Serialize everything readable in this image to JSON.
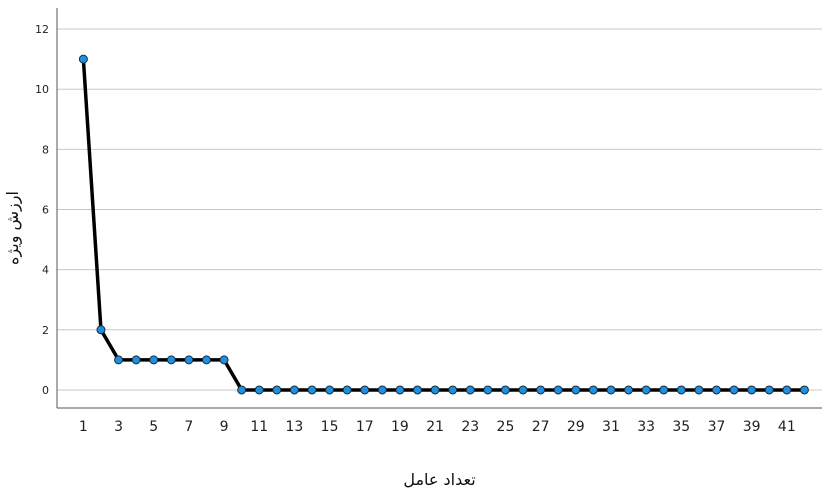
{
  "chart_data": {
    "type": "line",
    "title": "",
    "xlabel": "تعداد عامل",
    "ylabel": "ارزش ویژه",
    "x": [
      1,
      2,
      3,
      4,
      5,
      6,
      7,
      8,
      9,
      10,
      11,
      12,
      13,
      14,
      15,
      16,
      17,
      18,
      19,
      20,
      21,
      22,
      23,
      24,
      25,
      26,
      27,
      28,
      29,
      30,
      31,
      32,
      33,
      34,
      35,
      36,
      37,
      38,
      39,
      40,
      41,
      42
    ],
    "xtick_labels": [
      "1",
      "3",
      "5",
      "7",
      "9",
      "11",
      "13",
      "15",
      "17",
      "19",
      "21",
      "23",
      "25",
      "27",
      "29",
      "31",
      "33",
      "35",
      "37",
      "39",
      "41"
    ],
    "xlim": [
      -0.5,
      43
    ],
    "ylim": [
      -0.6,
      12.7
    ],
    "yticks": [
      0,
      2,
      4,
      6,
      8,
      10,
      12
    ],
    "grid": "horizontal",
    "series": [
      {
        "values": [
          11,
          2,
          1,
          1,
          1,
          1,
          1,
          1,
          1,
          0,
          0,
          0,
          0,
          0,
          0,
          0,
          0,
          0,
          0,
          0,
          0,
          0,
          0,
          0,
          0,
          0,
          0,
          0,
          0,
          0,
          0,
          0,
          0,
          0,
          0,
          0,
          0,
          0,
          0,
          0,
          0,
          0
        ],
        "line_color": "#000000",
        "marker_color": "#1f8fe0"
      }
    ]
  }
}
